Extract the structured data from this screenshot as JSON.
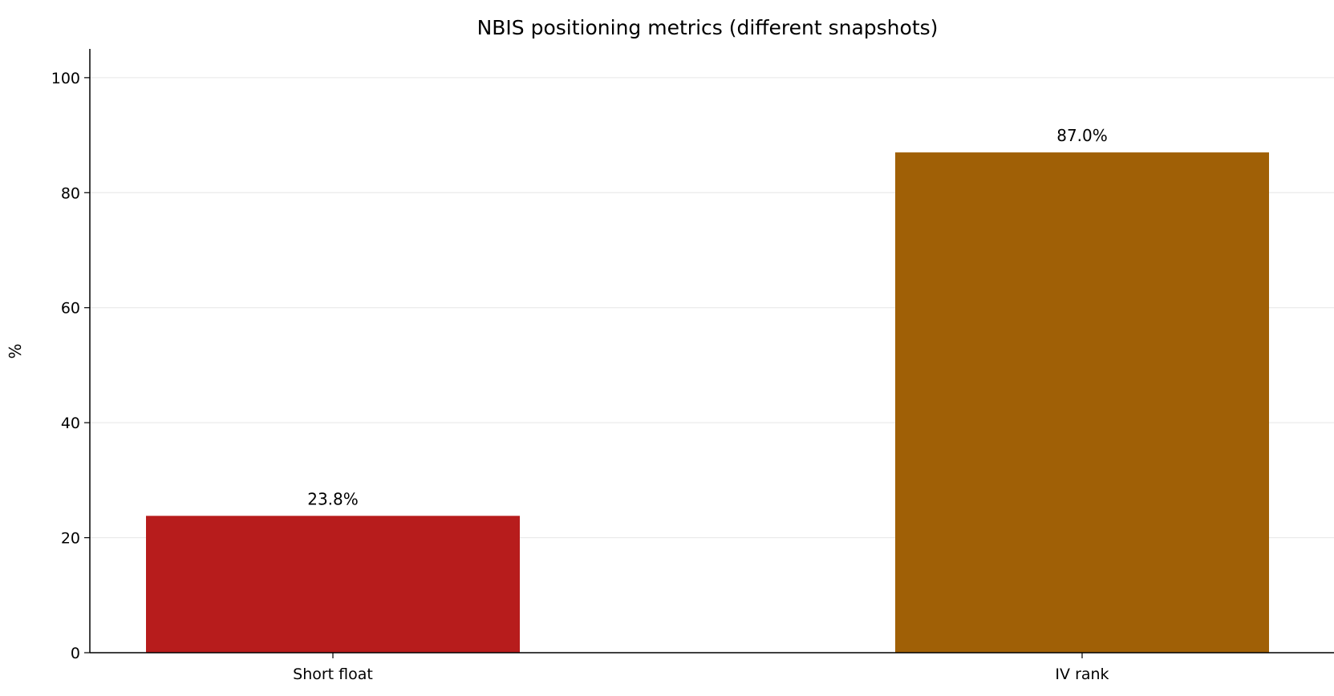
{
  "chart_data": {
    "type": "bar",
    "title": "NBIS positioning metrics (different snapshots)",
    "xlabel": "",
    "ylabel": "%",
    "ylim": [
      0,
      105
    ],
    "yticks": [
      "0",
      "20",
      "40",
      "60",
      "80",
      "100"
    ],
    "ytick_values": [
      0,
      20,
      40,
      60,
      80,
      100
    ],
    "grid": "y",
    "categories": [
      "Short float",
      "IV rank"
    ],
    "values": [
      23.8,
      87.0
    ],
    "value_labels": [
      "23.8%",
      "87.0%"
    ],
    "colors": [
      "#b71c1c",
      "#a06006"
    ]
  }
}
